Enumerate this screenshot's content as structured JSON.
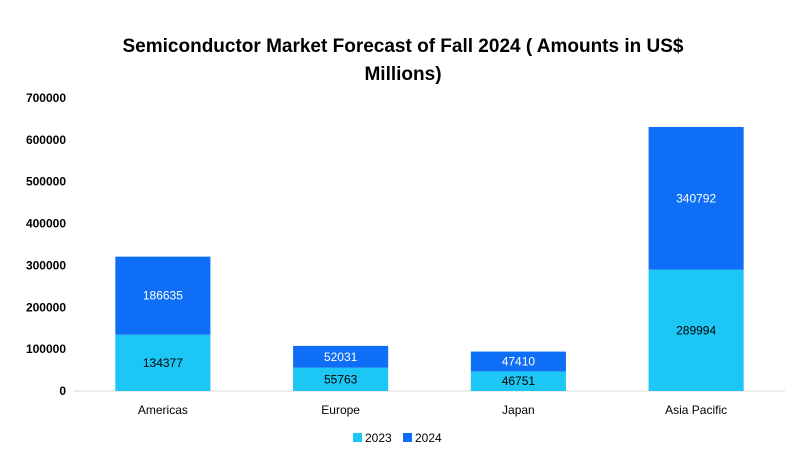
{
  "chart_data": {
    "type": "bar",
    "stacked": true,
    "title_lines": [
      "Semiconductor Market Forecast of Fall 2024 ( Amounts in US$",
      "Millions)"
    ],
    "categories": [
      "Americas",
      "Europe",
      "Japan",
      "Asia Pacific"
    ],
    "series": [
      {
        "name": "2023",
        "values": [
          134377,
          55763,
          46751,
          289994
        ],
        "color": "#1cc7f5",
        "label_color": "#000000"
      },
      {
        "name": "2024",
        "values": [
          186635,
          52031,
          47410,
          340792
        ],
        "color": "#0e6ef5",
        "label_color": "#ffffff"
      }
    ],
    "ylim": [
      0,
      700000
    ],
    "yticks": [
      "0",
      "100000",
      "200000",
      "300000",
      "400000",
      "500000",
      "600000",
      "700000"
    ],
    "grid": false,
    "legend_position": "bottom"
  }
}
